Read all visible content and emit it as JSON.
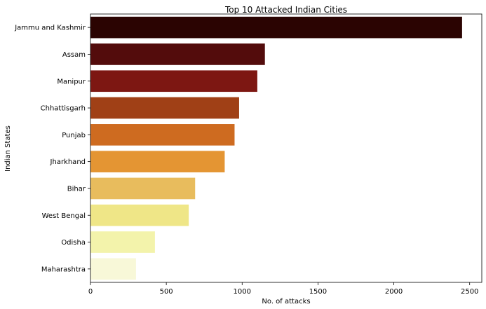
{
  "chart_data": {
    "type": "bar",
    "orientation": "horizontal",
    "title": "Top 10 Attacked Indian Cities",
    "xlabel": "No. of attacks",
    "ylabel": "Indian States",
    "categories": [
      "Jammu and Kashmir",
      "Assam",
      "Manipur",
      "Chhattisgarh",
      "Punjab",
      "Jharkhand",
      "Bihar",
      "West Bengal",
      "Odisha",
      "Maharashtra"
    ],
    "values": [
      2450,
      1150,
      1100,
      980,
      950,
      885,
      690,
      648,
      425,
      300
    ],
    "colors": [
      "#2b0402",
      "#530c0c",
      "#7d1712",
      "#a04016",
      "#ce6b20",
      "#e49533",
      "#e8bc5d",
      "#efe687",
      "#f3f3ab",
      "#f8f8d8"
    ],
    "xlim": [
      0,
      2580
    ],
    "xticks": [
      0,
      500,
      1000,
      1500,
      2000,
      2500
    ],
    "grid": false,
    "legend": "none"
  }
}
